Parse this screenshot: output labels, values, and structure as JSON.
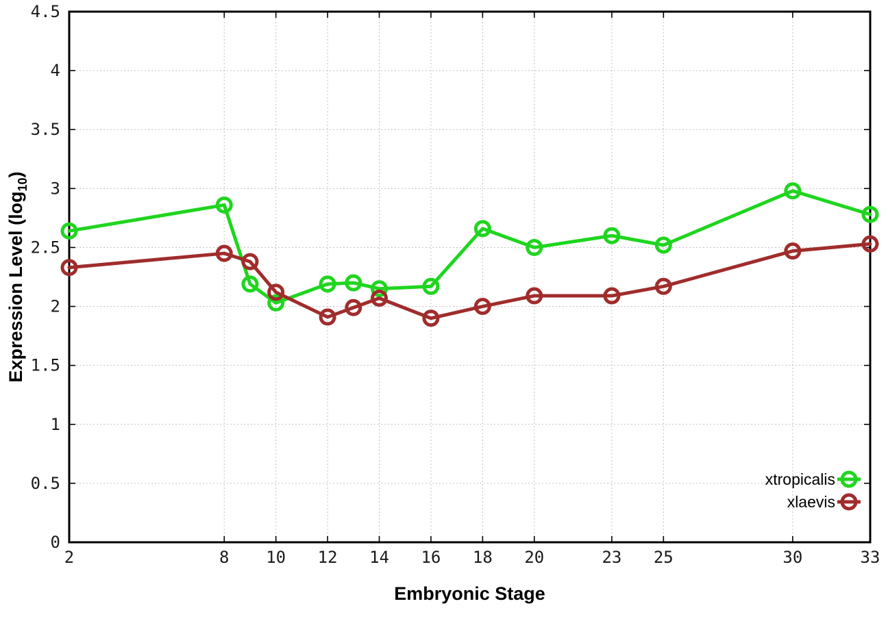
{
  "chart_data": {
    "type": "line",
    "title": "",
    "xlabel": "Embryonic Stage",
    "ylabel": {
      "main": "Expression Level (log",
      "sub": "10",
      "end": ")"
    },
    "xlim": [
      2,
      33
    ],
    "ylim": [
      0,
      4.5
    ],
    "grid": true,
    "legend_position": "bottom-right-inside",
    "marker": "open-circle",
    "x_ticks": [
      2,
      8,
      10,
      12,
      14,
      16,
      18,
      20,
      23,
      25,
      30,
      33
    ],
    "x_tick_labels": [
      "2",
      "8",
      "10",
      "12",
      "14",
      "16",
      "18",
      "20",
      "23",
      "25",
      "30",
      "33"
    ],
    "y_ticks": [
      0,
      0.5,
      1,
      1.5,
      2,
      2.5,
      3,
      3.5,
      4,
      4.5
    ],
    "y_tick_labels": [
      "0",
      "0.5",
      "1",
      "1.5",
      "2",
      "2.5",
      "3",
      "3.5",
      "4",
      "4.5"
    ],
    "x": [
      2,
      8,
      9,
      10,
      12,
      13,
      14,
      16,
      18,
      20,
      23,
      25,
      30,
      33
    ],
    "series": [
      {
        "name": "xtropicalis",
        "color": "#1fd51f",
        "values": [
          2.64,
          2.86,
          2.19,
          2.03,
          2.19,
          2.2,
          2.15,
          2.17,
          2.66,
          2.5,
          2.6,
          2.52,
          2.98,
          2.78
        ]
      },
      {
        "name": "xlaevis",
        "color": "#a02c2c",
        "values": [
          2.33,
          2.45,
          2.38,
          2.12,
          1.91,
          1.99,
          2.07,
          1.9,
          2.0,
          2.09,
          2.09,
          2.17,
          2.47,
          2.53
        ]
      }
    ],
    "colors": {
      "background": "#ffffff",
      "border": "#000000",
      "grid": "#c0c0c0",
      "tick": "#000000",
      "text": "#000000"
    }
  }
}
